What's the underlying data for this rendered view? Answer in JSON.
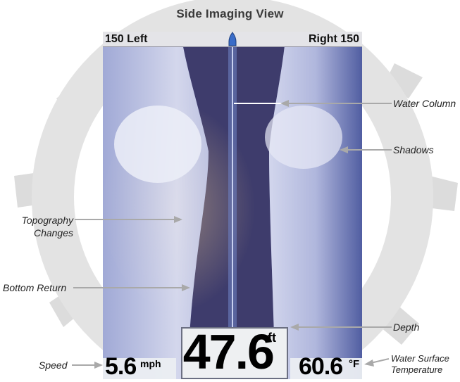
{
  "title": "Side Imaging View",
  "display": {
    "left_range": "150 Left",
    "right_range": "Right 150"
  },
  "readouts": {
    "depth_value": "47.6",
    "depth_unit": "ft",
    "speed_value": "5.6",
    "speed_unit": "mph",
    "temperature_value": "60.6",
    "temperature_unit": "°F"
  },
  "callouts": {
    "water_column": "Water Column",
    "shadows": "Shadows",
    "topography_line1": "Topography",
    "topography_line2": "Changes",
    "bottom_return": "Bottom Return",
    "depth": "Depth",
    "speed": "Speed",
    "water_surface_line1": "Water Surface",
    "water_surface_line2": "Temperature"
  },
  "colors": {
    "sonar_blue": "#4c5a9c",
    "bottom_light": "#d9dcf0",
    "water_dark": "#3a3a6e",
    "callout_line": "#a9a9a9",
    "watermark_gray": "#d3d3d3"
  }
}
